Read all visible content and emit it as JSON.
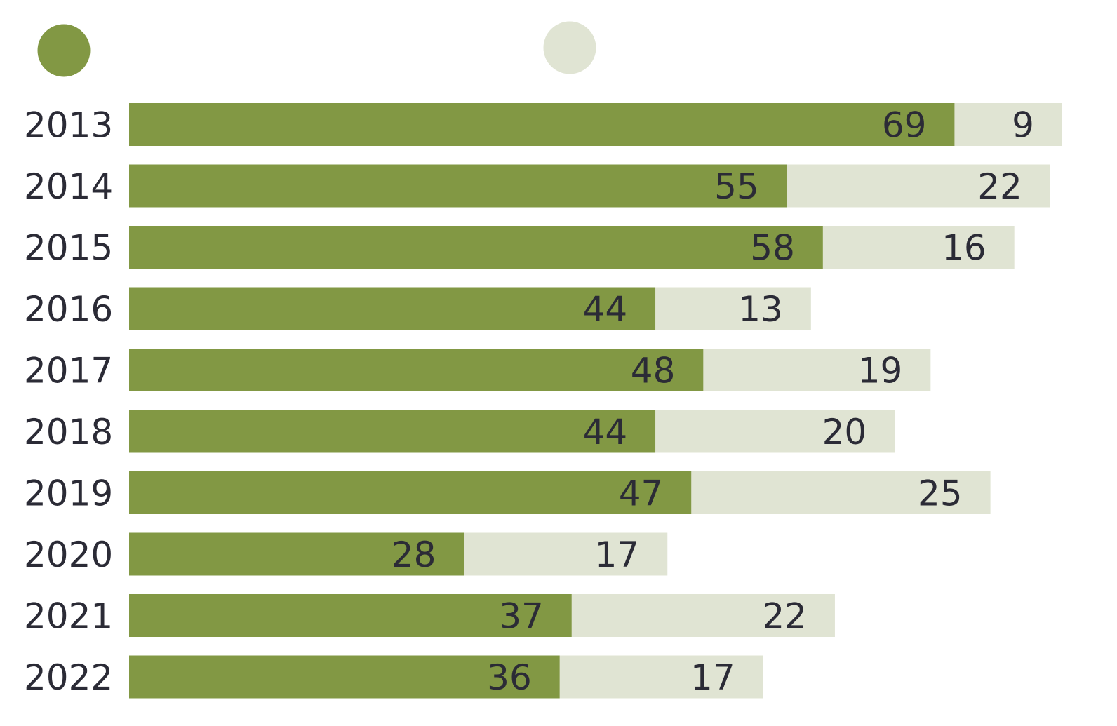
{
  "chart_data": {
    "type": "bar",
    "orientation": "horizontal",
    "stacked": true,
    "categories": [
      "2013",
      "2014",
      "2015",
      "2016",
      "2017",
      "2018",
      "2019",
      "2020",
      "2021",
      "2022"
    ],
    "series": [
      {
        "color": "#829844",
        "values": [
          69,
          55,
          58,
          44,
          48,
          44,
          47,
          28,
          37,
          36
        ]
      },
      {
        "color": "#e0e4d3",
        "values": [
          9,
          22,
          16,
          13,
          19,
          20,
          25,
          17,
          22,
          17
        ]
      }
    ],
    "data_labels": true,
    "legend": {
      "position": "top",
      "markers": [
        "circle",
        "circle"
      ]
    },
    "label_color": "#2b2b36",
    "title": "",
    "xlabel": "",
    "ylabel": "",
    "grid": false
  }
}
